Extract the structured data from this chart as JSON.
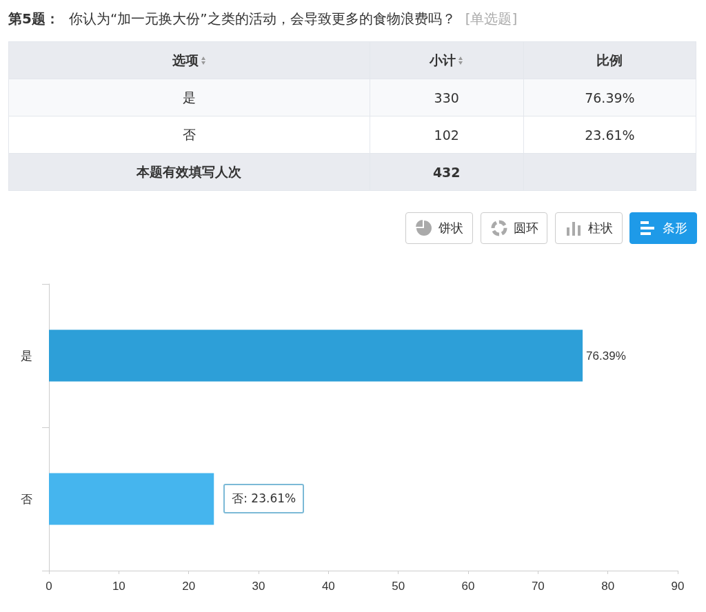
{
  "chart_data": [
    {
      "type": "other",
      "title": "第5题：",
      "subtitle": "你认为“加一元换大份”之类的活动，会导致更多的食物浪费吗？",
      "annotations": [
        "[单选题]",
        "选项",
        "小计",
        "比例",
        "是",
        "330",
        "76.39%",
        "否",
        "102",
        "23.61%",
        "本题有效填写人次",
        "432",
        "饼状",
        "圆环",
        "柱状",
        "条形"
      ]
    },
    {
      "type": "bar",
      "orientation": "horizontal",
      "categories": [
        "是",
        "否"
      ],
      "values": [
        76.39,
        23.61
      ],
      "colors": [
        "#2d9fd8",
        "#45b5ee"
      ],
      "xlim": [
        0,
        90
      ],
      "xticks": [
        0,
        10,
        20,
        30,
        40,
        50,
        60,
        70,
        80,
        90
      ],
      "grid": false,
      "value_labels": [
        "76.39%",
        null
      ],
      "annotations": [
        {
          "text": "否: 23.61%",
          "x": 23.61,
          "y": "否"
        }
      ]
    }
  ]
}
